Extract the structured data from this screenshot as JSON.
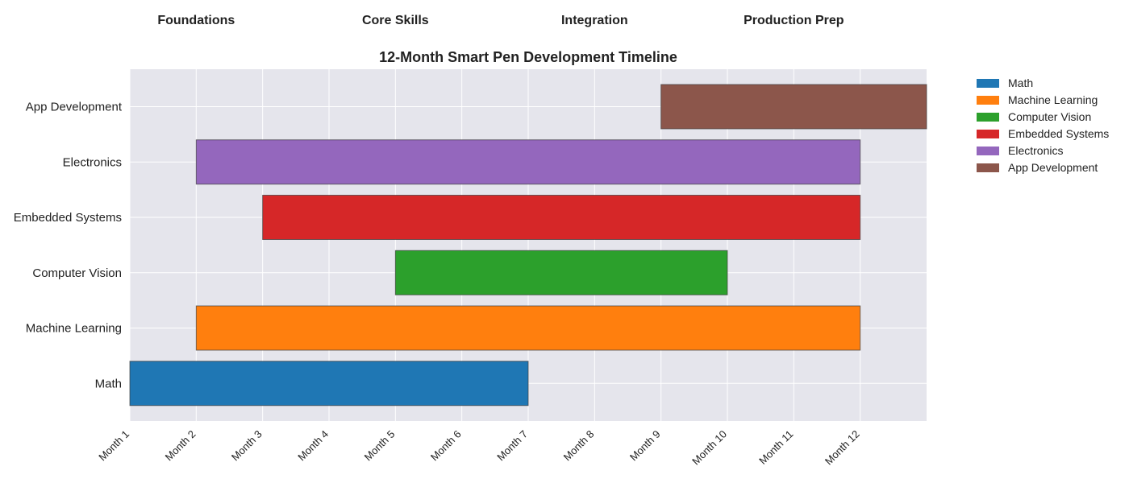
{
  "chart_data": {
    "type": "gantt",
    "title": "12-Month Smart Pen Development Timeline",
    "phases": [
      {
        "label": "Foundations",
        "month": 2
      },
      {
        "label": "Core Skills",
        "month": 5
      },
      {
        "label": "Integration",
        "month": 8
      },
      {
        "label": "Production Prep",
        "month": 11
      }
    ],
    "x_ticks": [
      "Month 1",
      "Month 2",
      "Month 3",
      "Month 4",
      "Month 5",
      "Month 6",
      "Month 7",
      "Month 8",
      "Month 9",
      "Month 10",
      "Month 11",
      "Month 12"
    ],
    "xlim": [
      1,
      13
    ],
    "grid": true,
    "legend_position": "right",
    "tasks": [
      {
        "name": "Math",
        "start": 1,
        "end": 7,
        "color": "#1f77b4"
      },
      {
        "name": "Machine Learning",
        "start": 2,
        "end": 12,
        "color": "#ff7f0e"
      },
      {
        "name": "Computer Vision",
        "start": 5,
        "end": 10,
        "color": "#2ca02c"
      },
      {
        "name": "Embedded Systems",
        "start": 3,
        "end": 12,
        "color": "#d62728"
      },
      {
        "name": "Electronics",
        "start": 2,
        "end": 12,
        "color": "#9467bd"
      },
      {
        "name": "App Development",
        "start": 9,
        "end": 13,
        "color": "#8c564b"
      }
    ]
  }
}
